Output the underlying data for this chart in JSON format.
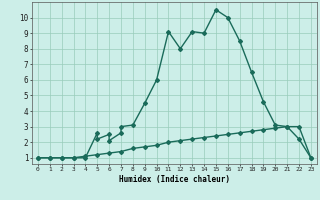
{
  "xlabel": "Humidex (Indice chaleur)",
  "line1_x": [
    0,
    1,
    2,
    3,
    4,
    5,
    5,
    6,
    6,
    7,
    7,
    8,
    9,
    10,
    11,
    12,
    13,
    14,
    15,
    16,
    17,
    18,
    19,
    20,
    21,
    22,
    23
  ],
  "line1_y": [
    1,
    1,
    1,
    1,
    1,
    2.6,
    2.2,
    2.5,
    2.1,
    2.6,
    3.0,
    3.1,
    4.5,
    6.0,
    9.1,
    8.0,
    9.1,
    9.0,
    10.5,
    10.0,
    8.5,
    6.5,
    4.6,
    3.1,
    3.0,
    2.2,
    1.0
  ],
  "line2_x": [
    0,
    1,
    2,
    3,
    4,
    5,
    6,
    7,
    8,
    9,
    10,
    11,
    12,
    13,
    14,
    15,
    16,
    17,
    18,
    19,
    20,
    21,
    22,
    23
  ],
  "line2_y": [
    1,
    1,
    1,
    1,
    1.1,
    1.2,
    1.3,
    1.4,
    1.6,
    1.7,
    1.8,
    2.0,
    2.1,
    2.2,
    2.3,
    2.4,
    2.5,
    2.6,
    2.7,
    2.8,
    2.9,
    3.0,
    3.0,
    1.0
  ],
  "line_color": "#1a6b5a",
  "bg_color": "#cceee8",
  "grid_color": "#99ccbb",
  "ylim": [
    0.6,
    11.0
  ],
  "xlim": [
    -0.5,
    23.5
  ],
  "yticks": [
    1,
    2,
    3,
    4,
    5,
    6,
    7,
    8,
    9,
    10
  ],
  "xticks": [
    0,
    1,
    2,
    3,
    4,
    5,
    6,
    7,
    8,
    9,
    10,
    11,
    12,
    13,
    14,
    15,
    16,
    17,
    18,
    19,
    20,
    21,
    22,
    23
  ],
  "xtick_labels": [
    "0",
    "1",
    "2",
    "3",
    "4",
    "5",
    "6",
    "7",
    "8",
    "9",
    "10",
    "11",
    "12",
    "13",
    "14",
    "15",
    "16",
    "17",
    "18",
    "19",
    "20",
    "21",
    "22",
    "23"
  ],
  "marker": "D",
  "marker_size": 2.0,
  "linewidth": 1.0
}
